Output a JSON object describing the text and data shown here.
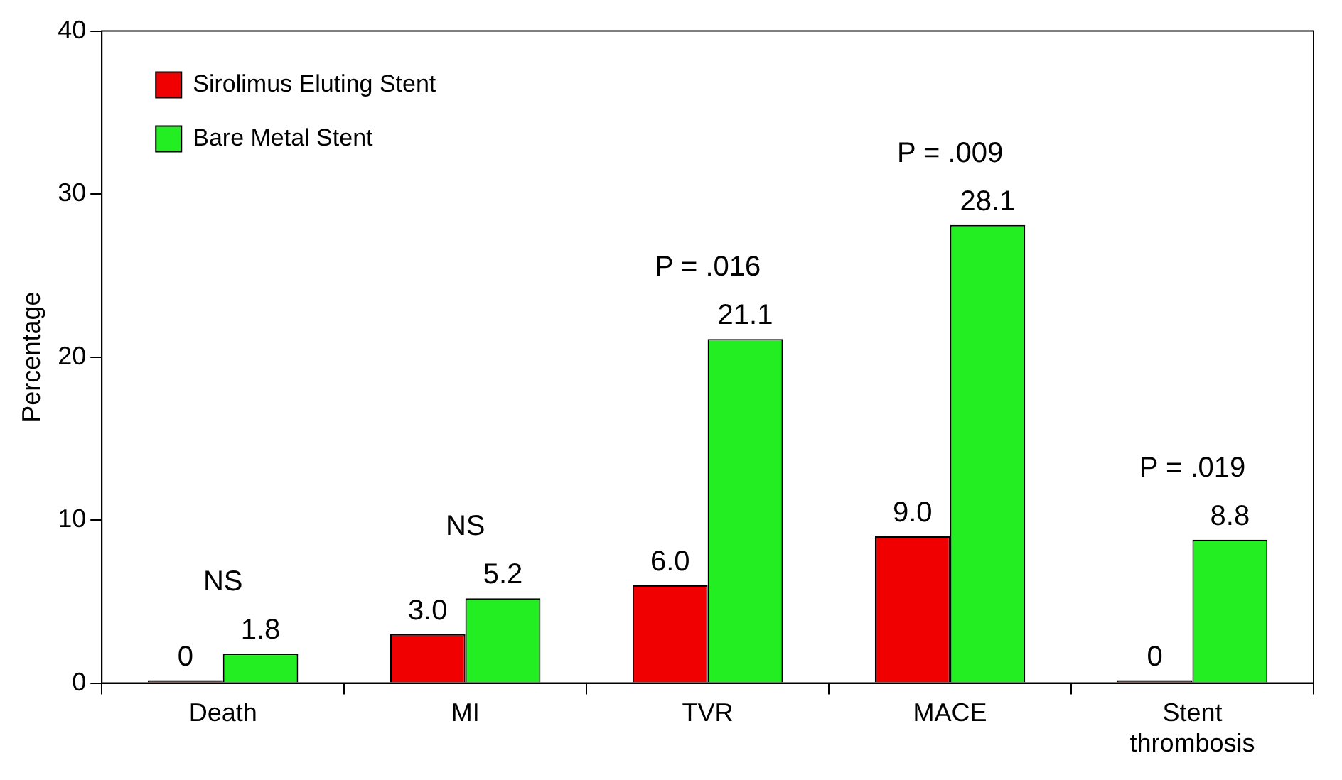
{
  "chart_data": {
    "type": "bar",
    "ylabel": "Percentage",
    "categories": [
      "Death",
      "MI",
      "TVR",
      "MACE",
      "Stent thrombosis"
    ],
    "series": [
      {
        "name": "Sirolimus Eluting Stent",
        "color": "#f00000",
        "values": [
          0,
          3.0,
          6.0,
          9.0,
          0
        ],
        "value_labels": [
          "0",
          "3.0",
          "6.0",
          "9.0",
          "0"
        ]
      },
      {
        "name": "Bare Metal Stent",
        "color": "#22ee22",
        "values": [
          1.8,
          5.2,
          21.1,
          28.1,
          8.8
        ],
        "value_labels": [
          "1.8",
          "5.2",
          "21.1",
          "28.1",
          "8.8"
        ]
      }
    ],
    "ylim": [
      0,
      40
    ],
    "yticks": [
      0,
      10,
      20,
      30,
      40
    ],
    "grid": false,
    "legend": "top left",
    "annotations": [
      "NS",
      "NS",
      "P = .016",
      "P = .009",
      "P = .019"
    ]
  }
}
